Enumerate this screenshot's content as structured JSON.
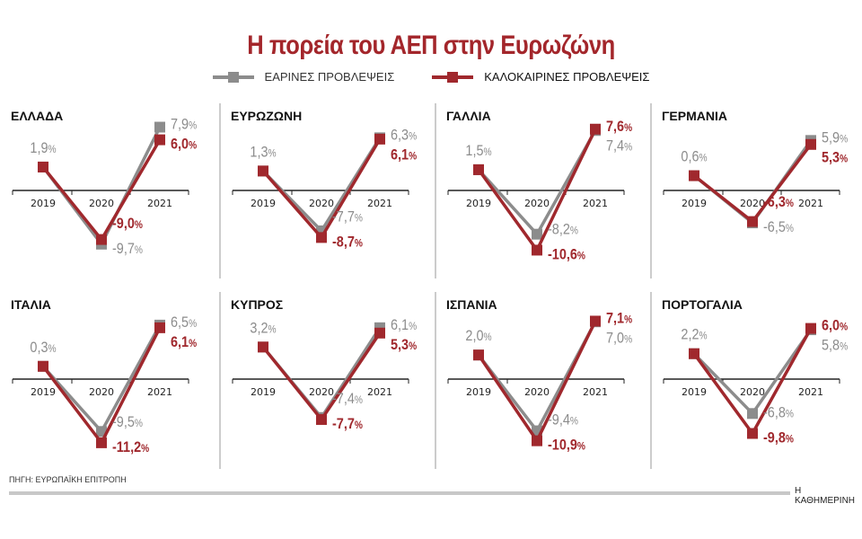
{
  "chart_data": {
    "type": "line",
    "title": "Η πορεία του ΑΕΠ στην Ευρωζώνη",
    "categories": [
      "2019",
      "2020",
      "2021"
    ],
    "unit": "%",
    "legend": {
      "placement": "top-center",
      "entries": [
        {
          "name": "ΕΑΡΙΝΕΣ ΠΡΟΒΛΕΨΕΙΣ",
          "color": "#8c8c8c"
        },
        {
          "name": "ΚΑΛΟΚΑΙΡΙΝΕΣ ΠΡΟΒΛΕΨΕΙΣ",
          "color": "#a0282d"
        }
      ]
    },
    "panels": [
      {
        "title": "ΕΛΛΑΔΑ",
        "series": [
          {
            "name": "ΕΑΡΙΝΕΣ ΠΡΟΒΛΕΨΕΙΣ",
            "values": [
              1.9,
              -9.7,
              7.9
            ]
          },
          {
            "name": "ΚΑΛΟΚΑΙΡΙΝΕΣ ΠΡΟΒΛΕΨΕΙΣ",
            "values": [
              1.9,
              -9.0,
              6.0
            ]
          }
        ]
      },
      {
        "title": "ΕΥΡΩΖΩΝΗ",
        "series": [
          {
            "name": "ΕΑΡΙΝΕΣ ΠΡΟΒΛΕΨΕΙΣ",
            "values": [
              1.3,
              -7.7,
              6.3
            ]
          },
          {
            "name": "ΚΑΛΟΚΑΙΡΙΝΕΣ ΠΡΟΒΛΕΨΕΙΣ",
            "values": [
              1.3,
              -8.7,
              6.1
            ]
          }
        ]
      },
      {
        "title": "ΓΑΛΛΙΑ",
        "series": [
          {
            "name": "ΕΑΡΙΝΕΣ ΠΡΟΒΛΕΨΕΙΣ",
            "values": [
              1.5,
              -8.2,
              7.4
            ]
          },
          {
            "name": "ΚΑΛΟΚΑΙΡΙΝΕΣ ΠΡΟΒΛΕΨΕΙΣ",
            "values": [
              1.5,
              -10.6,
              7.6
            ]
          }
        ]
      },
      {
        "title": "ΓΕΡΜΑΝΙΑ",
        "series": [
          {
            "name": "ΕΑΡΙΝΕΣ ΠΡΟΒΛΕΨΕΙΣ",
            "values": [
              0.6,
              -6.5,
              5.9
            ]
          },
          {
            "name": "ΚΑΛΟΚΑΙΡΙΝΕΣ ΠΡΟΒΛΕΨΕΙΣ",
            "values": [
              0.6,
              -6.3,
              5.3
            ]
          }
        ]
      },
      {
        "title": "ΙΤΑΛΙΑ",
        "series": [
          {
            "name": "ΕΑΡΙΝΕΣ ΠΡΟΒΛΕΨΕΙΣ",
            "values": [
              0.3,
              -9.5,
              6.5
            ]
          },
          {
            "name": "ΚΑΛΟΚΑΙΡΙΝΕΣ ΠΡΟΒΛΕΨΕΙΣ",
            "values": [
              0.3,
              -11.2,
              6.1
            ]
          }
        ]
      },
      {
        "title": "ΚΥΠΡΟΣ",
        "series": [
          {
            "name": "ΕΑΡΙΝΕΣ ΠΡΟΒΛΕΨΕΙΣ",
            "values": [
              3.2,
              -7.4,
              6.1
            ]
          },
          {
            "name": "ΚΑΛΟΚΑΙΡΙΝΕΣ ΠΡΟΒΛΕΨΕΙΣ",
            "values": [
              3.2,
              -7.7,
              5.3
            ]
          }
        ]
      },
      {
        "title": "ΙΣΠΑΝΙΑ",
        "series": [
          {
            "name": "ΕΑΡΙΝΕΣ ΠΡΟΒΛΕΨΕΙΣ",
            "values": [
              2.0,
              -9.4,
              7.0
            ]
          },
          {
            "name": "ΚΑΛΟΚΑΙΡΙΝΕΣ ΠΡΟΒΛΕΨΕΙΣ",
            "values": [
              2.0,
              -10.9,
              7.1
            ]
          }
        ]
      },
      {
        "title": "ΠΟΡΤΟΓΑΛΙΑ",
        "series": [
          {
            "name": "ΕΑΡΙΝΕΣ ΠΡΟΒΛΕΨΕΙΣ",
            "values": [
              2.2,
              -6.8,
              5.8
            ]
          },
          {
            "name": "ΚΑΛΟΚΑΙΡΙΝΕΣ ΠΡΟΒΛΕΨΕΙΣ",
            "values": [
              2.2,
              -9.8,
              6.0
            ]
          }
        ]
      }
    ]
  },
  "footer": {
    "source": "ΠΗΓΗ: ΕΥΡΩΠΑΪΚΗ ΕΠΙΤΡΟΠΗ",
    "brand": "Η ΚΑΘΗΜΕΡΙΝΗ"
  }
}
